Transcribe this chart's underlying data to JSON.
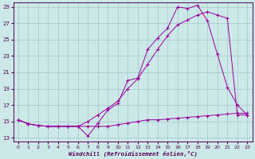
{
  "xlabel": "Windchill (Refroidissement éolien,°C)",
  "bg_color": "#cce8e8",
  "grid_color": "#aacccc",
  "line_color": "#990099",
  "xlim": [
    -0.5,
    23.5
  ],
  "ylim": [
    12.5,
    29.5
  ],
  "xticks": [
    0,
    1,
    2,
    3,
    4,
    5,
    6,
    7,
    8,
    9,
    10,
    11,
    12,
    13,
    14,
    15,
    16,
    17,
    18,
    19,
    20,
    21,
    22,
    23
  ],
  "yticks": [
    13,
    15,
    17,
    19,
    21,
    23,
    25,
    27,
    29
  ],
  "line1_x": [
    0,
    1,
    2,
    3,
    4,
    5,
    6,
    7,
    8,
    9,
    10,
    11,
    12,
    13,
    14,
    15,
    16,
    17,
    18,
    19,
    20,
    21,
    22,
    23
  ],
  "line1_y": [
    15.2,
    14.7,
    14.5,
    14.4,
    14.4,
    14.4,
    14.4,
    13.2,
    14.8,
    16.4,
    17.2,
    20.0,
    20.3,
    23.8,
    25.2,
    26.4,
    29.0,
    28.8,
    29.2,
    27.3,
    23.2,
    19.2,
    17.0,
    15.8
  ],
  "line2_x": [
    0,
    1,
    2,
    3,
    4,
    5,
    6,
    7,
    8,
    9,
    10,
    11,
    12,
    13,
    14,
    15,
    16,
    17,
    18,
    19,
    20,
    21,
    22,
    23
  ],
  "line2_y": [
    15.2,
    14.7,
    14.5,
    14.4,
    14.4,
    14.4,
    14.4,
    15.0,
    15.8,
    16.6,
    17.5,
    19.0,
    20.2,
    22.0,
    23.8,
    25.5,
    26.8,
    27.4,
    28.0,
    28.4,
    28.0,
    27.6,
    15.8,
    15.8
  ],
  "line3_x": [
    0,
    1,
    2,
    3,
    4,
    5,
    6,
    7,
    8,
    9,
    10,
    11,
    12,
    13,
    14,
    15,
    16,
    17,
    18,
    19,
    20,
    21,
    22,
    23
  ],
  "line3_y": [
    15.2,
    14.7,
    14.5,
    14.4,
    14.4,
    14.4,
    14.4,
    14.4,
    14.4,
    14.4,
    14.6,
    14.8,
    15.0,
    15.2,
    15.2,
    15.3,
    15.4,
    15.5,
    15.6,
    15.7,
    15.8,
    15.9,
    16.0,
    16.0
  ]
}
